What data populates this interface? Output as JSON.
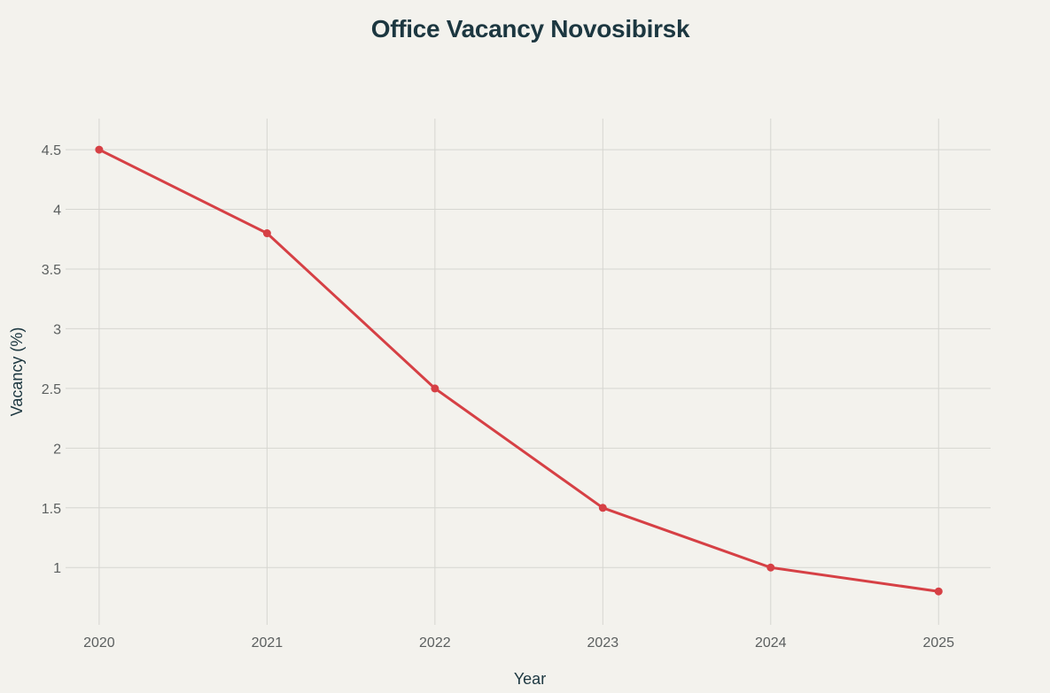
{
  "chart_data": {
    "type": "line",
    "title": "Office Vacancy Novosibirsk",
    "xlabel": "Year",
    "ylabel": "Vacancy (%)",
    "x": [
      2020,
      2021,
      2022,
      2023,
      2024,
      2025
    ],
    "x_tick_labels": [
      "2020",
      "2021",
      "2022",
      "2023",
      "2024",
      "2025"
    ],
    "y_ticks": [
      1,
      1.5,
      2,
      2.5,
      3,
      3.5,
      4,
      4.5
    ],
    "y_tick_labels": [
      "1",
      "1.5",
      "2",
      "2.5",
      "3",
      "3.5",
      "4",
      "4.5"
    ],
    "series": [
      {
        "values": [
          4.5,
          3.8,
          2.5,
          1.5,
          1.0,
          0.8
        ],
        "color": "#d64045"
      }
    ],
    "xlim": [
      2019.8,
      2025.31
    ],
    "ylim": [
      0.52,
      4.76
    ],
    "grid": true,
    "legend": "none"
  }
}
